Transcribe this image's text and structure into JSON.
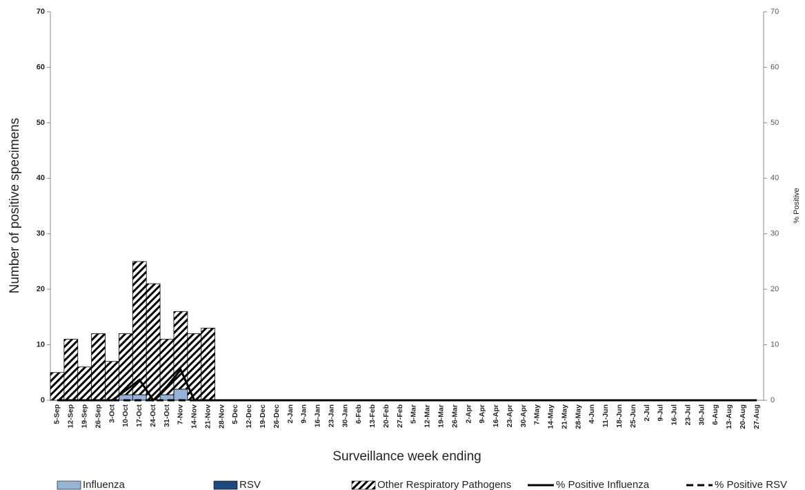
{
  "chart_data": {
    "type": "bar",
    "stacked": true,
    "y_label": "Number of positive specimens",
    "y2_label": "% Positive",
    "x_label": "Surveillance week ending",
    "categories": [
      "5-Sep",
      "12-Sep",
      "19-Sep",
      "26-Sep",
      "3-Oct",
      "10-Oct",
      "17-Oct",
      "24-Oct",
      "31-Oct",
      "7-Nov",
      "14-Nov",
      "21-Nov",
      "28-Nov",
      "5-Dec",
      "12-Dec",
      "19-Dec",
      "26-Dec",
      "2-Jan",
      "9-Jan",
      "16-Jan",
      "23-Jan",
      "30-Jan",
      "6-Feb",
      "13-Feb",
      "20-Feb",
      "27-Feb",
      "5-Mar",
      "12-Mar",
      "19-Mar",
      "26-Mar",
      "2-Apr",
      "9-Apr",
      "16-Apr",
      "23-Apr",
      "30-Apr",
      "7-May",
      "14-May",
      "21-May",
      "28-May",
      "4-Jun",
      "11-Jun",
      "18-Jun",
      "25-Jun",
      "2-Jul",
      "9-Jul",
      "16-Jul",
      "23-Jul",
      "30-Jul",
      "6-Aug",
      "13-Aug",
      "20-Aug",
      "27-Aug"
    ],
    "series": [
      {
        "name": "Influenza",
        "color": "#95b3d7",
        "values": [
          0,
          0,
          0,
          0,
          0,
          1,
          1,
          0,
          1,
          2,
          0,
          0,
          0,
          0,
          0,
          0,
          0,
          0,
          0,
          0,
          0,
          0,
          0,
          0,
          0,
          0,
          0,
          0,
          0,
          0,
          0,
          0,
          0,
          0,
          0,
          0,
          0,
          0,
          0,
          0,
          0,
          0,
          0,
          0,
          0,
          0,
          0,
          0,
          0,
          0,
          0,
          0
        ]
      },
      {
        "name": "RSV",
        "color": "#1f497d",
        "values": [
          0,
          0,
          0,
          0,
          0,
          0,
          0,
          0,
          0,
          0,
          0,
          0,
          0,
          0,
          0,
          0,
          0,
          0,
          0,
          0,
          0,
          0,
          0,
          0,
          0,
          0,
          0,
          0,
          0,
          0,
          0,
          0,
          0,
          0,
          0,
          0,
          0,
          0,
          0,
          0,
          0,
          0,
          0,
          0,
          0,
          0,
          0,
          0,
          0,
          0,
          0,
          0
        ]
      },
      {
        "name": "Other Respiratory Pathogens",
        "color": "#000000",
        "pattern": "hatch",
        "values": [
          5,
          11,
          6,
          12,
          7,
          11,
          24,
          21,
          10,
          14,
          12,
          13,
          0,
          0,
          0,
          0,
          0,
          0,
          0,
          0,
          0,
          0,
          0,
          0,
          0,
          0,
          0,
          0,
          0,
          0,
          0,
          0,
          0,
          0,
          0,
          0,
          0,
          0,
          0,
          0,
          0,
          0,
          0,
          0,
          0,
          0,
          0,
          0,
          0,
          0,
          0,
          0
        ]
      },
      {
        "name": "% Positive Influenza",
        "type": "line",
        "axis": "y2",
        "color": "#000000",
        "style": "solid",
        "values": [
          0,
          0,
          0,
          0,
          0,
          1.8,
          3.7,
          0,
          2.5,
          5.5,
          0,
          0,
          0,
          0,
          0,
          0,
          0,
          0,
          0,
          0,
          0,
          0,
          0,
          0,
          0,
          0,
          0,
          0,
          0,
          0,
          0,
          0,
          0,
          0,
          0,
          0,
          0,
          0,
          0,
          0,
          0,
          0,
          0,
          0,
          0,
          0,
          0,
          0,
          0,
          0,
          0,
          0
        ]
      },
      {
        "name": "% Positive RSV",
        "type": "line",
        "axis": "y2",
        "color": "#000000",
        "style": "dashed",
        "values": [
          0,
          0,
          0,
          0,
          0,
          0,
          0,
          0,
          0,
          0,
          0,
          0,
          0,
          0,
          0,
          0,
          0,
          0,
          0,
          0,
          0,
          0,
          0,
          0,
          0,
          0,
          0,
          0,
          0,
          0,
          0,
          0,
          0,
          0,
          0,
          0,
          0,
          0,
          0,
          0,
          0,
          0,
          0,
          0,
          0,
          0,
          0,
          0,
          0,
          0,
          0,
          0
        ]
      }
    ],
    "ylim": [
      0,
      70
    ],
    "yticks": [
      0,
      10,
      20,
      30,
      40,
      50,
      60,
      70
    ],
    "y2lim": [
      0,
      70
    ],
    "y2ticks": [
      0,
      10,
      20,
      30,
      40,
      50,
      60,
      70
    ],
    "legend": "bottom"
  }
}
